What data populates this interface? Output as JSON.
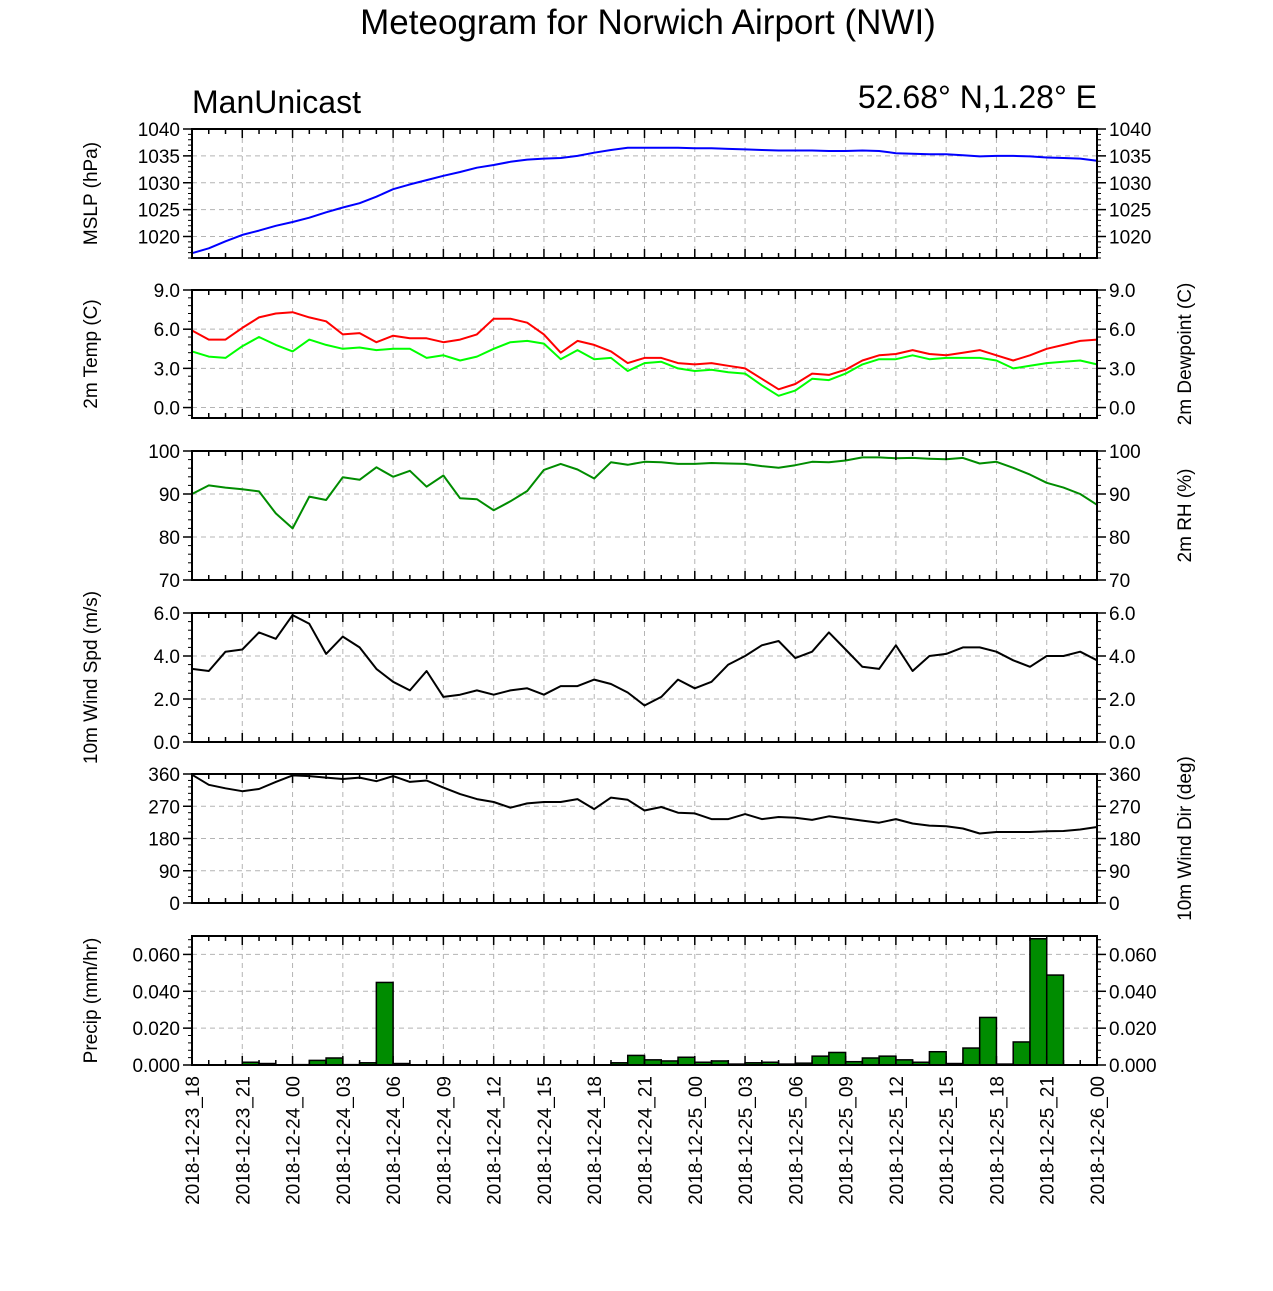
{
  "title": "Meteogram for Norwich Airport (NWI)",
  "model_label": "ManUnicast",
  "location_label": "52.68° N,1.28° E",
  "colors": {
    "mslp": "#0000ff",
    "temp": "#ff0000",
    "dewpoint": "#00ff00",
    "rh": "#008c00",
    "wind": "#000000",
    "precip_fill": "#008c00",
    "grid": "#b4b4b4"
  },
  "chart_data": {
    "type": "line",
    "x_start": "2018-12-23_18",
    "x_end": "2018-12-26_00",
    "x_step_hours": 1,
    "x_tick_labels": [
      "2018-12-23_18",
      "2018-12-23_21",
      "2018-12-24_00",
      "2018-12-24_03",
      "2018-12-24_06",
      "2018-12-24_09",
      "2018-12-24_12",
      "2018-12-24_15",
      "2018-12-24_18",
      "2018-12-24_21",
      "2018-12-25_00",
      "2018-12-25_03",
      "2018-12-25_06",
      "2018-12-25_09",
      "2018-12-25_12",
      "2018-12-25_15",
      "2018-12-25_18",
      "2018-12-25_21",
      "2018-12-26_00"
    ],
    "panels": [
      {
        "name": "mslp",
        "ylabel_left": "MSLP (hPa)",
        "ylabel_right": "",
        "ylim": [
          1016,
          1040
        ],
        "yticks": [
          1020,
          1025,
          1030,
          1035,
          1040
        ],
        "ytick_labels": [
          "1020",
          "1025",
          "1030",
          "1035",
          "1040"
        ],
        "decimals": 0,
        "series": [
          {
            "color_key": "mslp",
            "values": [
              1016.9,
              1017.8,
              1019.1,
              1020.3,
              1021.1,
              1022.0,
              1022.7,
              1023.5,
              1024.5,
              1025.4,
              1026.2,
              1027.4,
              1028.8,
              1029.7,
              1030.5,
              1031.3,
              1032.0,
              1032.8,
              1033.3,
              1033.9,
              1034.3,
              1034.5,
              1034.6,
              1035.0,
              1035.6,
              1036.1,
              1036.5,
              1036.5,
              1036.5,
              1036.5,
              1036.4,
              1036.4,
              1036.3,
              1036.2,
              1036.1,
              1036.0,
              1036.0,
              1036.0,
              1035.9,
              1035.9,
              1036.0,
              1035.9,
              1035.5,
              1035.4,
              1035.3,
              1035.3,
              1035.1,
              1034.9,
              1035.0,
              1035.0,
              1034.9,
              1034.7,
              1034.6,
              1034.5,
              1034.1
            ]
          }
        ]
      },
      {
        "name": "temp",
        "ylabel_left": "2m Temp (C)",
        "ylabel_right": "2m Dewpoint (C)",
        "ylim": [
          -0.8,
          9.0
        ],
        "yticks": [
          0.0,
          3.0,
          6.0,
          9.0
        ],
        "ytick_labels": [
          "0.0",
          "3.0",
          "6.0",
          "9.0"
        ],
        "decimals": 1,
        "series": [
          {
            "color_key": "temp",
            "values": [
              5.9,
              5.2,
              5.2,
              6.1,
              6.9,
              7.2,
              7.3,
              6.9,
              6.6,
              5.6,
              5.7,
              5.0,
              5.5,
              5.3,
              5.3,
              5.0,
              5.2,
              5.6,
              6.8,
              6.8,
              6.5,
              5.6,
              4.2,
              5.1,
              4.8,
              4.3,
              3.4,
              3.8,
              3.8,
              3.4,
              3.3,
              3.4,
              3.2,
              3.0,
              2.2,
              1.4,
              1.8,
              2.6,
              2.5,
              2.9,
              3.6,
              4.0,
              4.1,
              4.4,
              4.1,
              4.0,
              4.2,
              4.4,
              4.0,
              3.6,
              4.0,
              4.5,
              4.8,
              5.1,
              5.2
            ]
          },
          {
            "color_key": "dewpoint",
            "values": [
              4.3,
              3.9,
              3.8,
              4.7,
              5.4,
              4.8,
              4.3,
              5.2,
              4.8,
              4.5,
              4.6,
              4.4,
              4.5,
              4.5,
              3.8,
              4.0,
              3.6,
              3.9,
              4.5,
              5.0,
              5.1,
              4.9,
              3.7,
              4.4,
              3.7,
              3.8,
              2.8,
              3.4,
              3.5,
              3.0,
              2.8,
              2.9,
              2.7,
              2.6,
              1.7,
              0.9,
              1.3,
              2.2,
              2.1,
              2.6,
              3.3,
              3.7,
              3.7,
              4.0,
              3.7,
              3.8,
              3.8,
              3.8,
              3.6,
              3.0,
              3.2,
              3.4,
              3.5,
              3.6,
              3.3
            ]
          }
        ]
      },
      {
        "name": "rh",
        "ylabel_left": "",
        "ylabel_right": "2m RH (%)",
        "ylim": [
          70,
          100
        ],
        "yticks": [
          70,
          80,
          90,
          100
        ],
        "ytick_labels": [
          "70",
          "80",
          "90",
          "100"
        ],
        "decimals": 0,
        "series": [
          {
            "color_key": "rh",
            "values": [
              90.0,
              92.0,
              91.5,
              91.1,
              90.6,
              85.5,
              82.0,
              89.4,
              88.6,
              93.9,
              93.3,
              96.2,
              94.0,
              95.4,
              91.7,
              94.3,
              89.0,
              88.8,
              86.2,
              88.3,
              90.7,
              95.6,
              97.0,
              95.7,
              93.6,
              97.4,
              96.8,
              97.5,
              97.4,
              97.0,
              97.0,
              97.2,
              97.1,
              97.0,
              96.5,
              96.1,
              96.7,
              97.5,
              97.4,
              97.8,
              98.5,
              98.5,
              98.3,
              98.4,
              98.2,
              98.1,
              98.4,
              97.1,
              97.5,
              96.1,
              94.5,
              92.6,
              91.5,
              90.0,
              87.5
            ]
          }
        ]
      },
      {
        "name": "wind",
        "ylabel_left": "10m Wind Spd (m/s)",
        "ylabel_right": "",
        "ylim": [
          0,
          6.0
        ],
        "yticks": [
          0.0,
          2.0,
          4.0,
          6.0
        ],
        "ytick_labels": [
          "0.0",
          "2.0",
          "4.0",
          "6.0"
        ],
        "decimals": 1,
        "series": [
          {
            "color_key": "wind",
            "values": [
              3.4,
              3.3,
              4.2,
              4.3,
              5.1,
              4.8,
              5.9,
              5.5,
              4.1,
              4.9,
              4.4,
              3.4,
              2.8,
              2.4,
              3.3,
              2.1,
              2.2,
              2.4,
              2.2,
              2.4,
              2.5,
              2.2,
              2.6,
              2.6,
              2.9,
              2.7,
              2.3,
              1.7,
              2.1,
              2.9,
              2.5,
              2.8,
              3.6,
              4.0,
              4.5,
              4.7,
              3.9,
              4.2,
              5.1,
              4.3,
              3.5,
              3.4,
              4.5,
              3.3,
              4.0,
              4.1,
              4.4,
              4.4,
              4.2,
              3.8,
              3.5,
              4.0,
              4.0,
              4.2,
              3.8
            ]
          }
        ]
      },
      {
        "name": "winddir",
        "ylabel_left": "",
        "ylabel_right": "10m Wind Dir (deg)",
        "ylim": [
          0,
          360
        ],
        "yticks": [
          0,
          90,
          180,
          270,
          360
        ],
        "ytick_labels": [
          "0",
          "90",
          "180",
          "270",
          "360"
        ],
        "decimals": 0,
        "series": [
          {
            "color_key": "wind",
            "values": [
              358,
              330,
              320,
              312,
              318,
              338,
              356,
              354,
              350,
              346,
              350,
              340,
              354,
              338,
              342,
              322,
              304,
              290,
              282,
              266,
              278,
              282,
              282,
              290,
              262,
              294,
              288,
              258,
              268,
              252,
              250,
              234,
              234,
              248,
              234,
              240,
              238,
              232,
              242,
              236,
              230,
              224,
              234,
              222,
              216,
              214,
              208,
              194,
              198,
              198,
              198,
              200,
              201,
              205,
              212
            ]
          }
        ]
      },
      {
        "name": "precip",
        "ylabel_left": "Precip (mm/hr)",
        "ylabel_right": "",
        "ylim": [
          0,
          0.07
        ],
        "yticks": [
          0.0,
          0.02,
          0.04,
          0.06
        ],
        "ytick_labels": [
          "0.000",
          "0.020",
          "0.040",
          "0.060"
        ],
        "decimals": 3,
        "bars": [
          0,
          0,
          0,
          0.0015,
          0.0008,
          0,
          0.0002,
          0.0025,
          0.0038,
          0.0002,
          0.0012,
          0.0448,
          0.0008,
          0,
          0,
          0,
          0,
          0,
          0,
          0,
          0,
          0,
          0,
          0,
          0,
          0.0012,
          0.0052,
          0.0028,
          0.0022,
          0.0042,
          0.0015,
          0.0022,
          0.0005,
          0.0012,
          0.0015,
          0.0005,
          0.001,
          0.0048,
          0.0068,
          0.0018,
          0.0038,
          0.0048,
          0.0028,
          0.0015,
          0.0072,
          0.0008,
          0.0092,
          0.0258,
          0.0005,
          0.0125,
          0.0685,
          0.0488,
          0,
          0,
          0
        ]
      }
    ]
  }
}
